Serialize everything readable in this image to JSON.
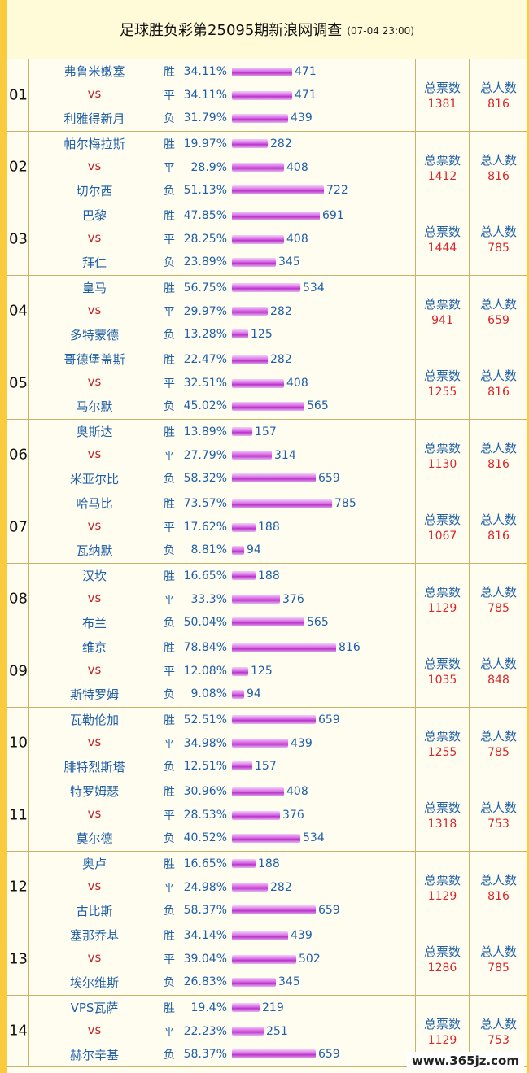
{
  "title": {
    "main": "足球胜负彩第25095期新浪网调查",
    "time": "(07-04 23:00)"
  },
  "labels": {
    "vs": "vs",
    "win": "胜",
    "draw": "平",
    "loss": "负",
    "total_votes": "总票数",
    "total_people": "总人数"
  },
  "matches": [
    {
      "num": "01",
      "home": "弗鲁米嫩塞",
      "away": "利雅得新月",
      "win_pct": "34.11%",
      "win": "471",
      "draw_pct": "34.11%",
      "draw": "471",
      "loss_pct": "31.79%",
      "loss": "439",
      "total": "1381",
      "people": "816"
    },
    {
      "num": "02",
      "home": "帕尔梅拉斯",
      "away": "切尔西",
      "win_pct": "19.97%",
      "win": "282",
      "draw_pct": "28.9%",
      "draw": "408",
      "loss_pct": "51.13%",
      "loss": "722",
      "total": "1412",
      "people": "816"
    },
    {
      "num": "03",
      "home": "巴黎",
      "away": "拜仁",
      "win_pct": "47.85%",
      "win": "691",
      "draw_pct": "28.25%",
      "draw": "408",
      "loss_pct": "23.89%",
      "loss": "345",
      "total": "1444",
      "people": "785"
    },
    {
      "num": "04",
      "home": "皇马",
      "away": "多特蒙德",
      "win_pct": "56.75%",
      "win": "534",
      "draw_pct": "29.97%",
      "draw": "282",
      "loss_pct": "13.28%",
      "loss": "125",
      "total": "941",
      "people": "659"
    },
    {
      "num": "05",
      "home": "哥德堡盖斯",
      "away": "马尔默",
      "win_pct": "22.47%",
      "win": "282",
      "draw_pct": "32.51%",
      "draw": "408",
      "loss_pct": "45.02%",
      "loss": "565",
      "total": "1255",
      "people": "816"
    },
    {
      "num": "06",
      "home": "奥斯达",
      "away": "米亚尔比",
      "win_pct": "13.89%",
      "win": "157",
      "draw_pct": "27.79%",
      "draw": "314",
      "loss_pct": "58.32%",
      "loss": "659",
      "total": "1130",
      "people": "816"
    },
    {
      "num": "07",
      "home": "哈马比",
      "away": "瓦纳默",
      "win_pct": "73.57%",
      "win": "785",
      "draw_pct": "17.62%",
      "draw": "188",
      "loss_pct": "8.81%",
      "loss": "94",
      "total": "1067",
      "people": "816"
    },
    {
      "num": "08",
      "home": "汉坎",
      "away": "布兰",
      "win_pct": "16.65%",
      "win": "188",
      "draw_pct": "33.3%",
      "draw": "376",
      "loss_pct": "50.04%",
      "loss": "565",
      "total": "1129",
      "people": "785"
    },
    {
      "num": "09",
      "home": "维京",
      "away": "斯特罗姆",
      "win_pct": "78.84%",
      "win": "816",
      "draw_pct": "12.08%",
      "draw": "125",
      "loss_pct": "9.08%",
      "loss": "94",
      "total": "1035",
      "people": "848"
    },
    {
      "num": "10",
      "home": "瓦勒伦加",
      "away": "腓特烈斯塔",
      "win_pct": "52.51%",
      "win": "659",
      "draw_pct": "34.98%",
      "draw": "439",
      "loss_pct": "12.51%",
      "loss": "157",
      "total": "1255",
      "people": "785"
    },
    {
      "num": "11",
      "home": "特罗姆瑟",
      "away": "莫尔德",
      "win_pct": "30.96%",
      "win": "408",
      "draw_pct": "28.53%",
      "draw": "376",
      "loss_pct": "40.52%",
      "loss": "534",
      "total": "1318",
      "people": "753"
    },
    {
      "num": "12",
      "home": "奥卢",
      "away": "古比斯",
      "win_pct": "16.65%",
      "win": "188",
      "draw_pct": "24.98%",
      "draw": "282",
      "loss_pct": "58.37%",
      "loss": "659",
      "total": "1129",
      "people": "816"
    },
    {
      "num": "13",
      "home": "塞那乔基",
      "away": "埃尔维斯",
      "win_pct": "34.14%",
      "win": "439",
      "draw_pct": "39.04%",
      "draw": "502",
      "loss_pct": "26.83%",
      "loss": "345",
      "total": "1286",
      "people": "785"
    },
    {
      "num": "14",
      "home": "VPS瓦萨",
      "away": "赫尔辛基",
      "win_pct": "19.4%",
      "win": "219",
      "draw_pct": "22.23%",
      "draw": "251",
      "loss_pct": "58.37%",
      "loss": "659",
      "total": "1129",
      "people": "753"
    }
  ],
  "watermark": "www.365jz.com",
  "colors": {
    "background": "#fbcb3e",
    "team": "#1f5fa8",
    "vs": "#c0282e",
    "value": "#d8262d",
    "bar": "#d867e6"
  }
}
